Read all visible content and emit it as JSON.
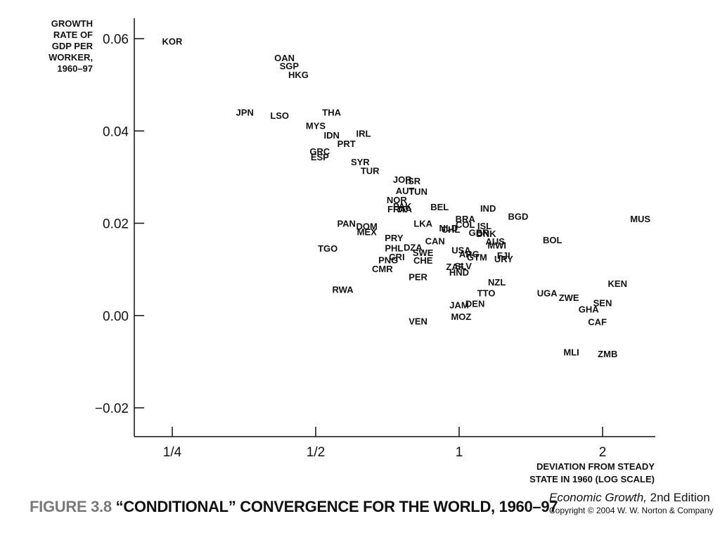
{
  "chart_data": {
    "type": "scatter",
    "title": "“CONDITIONAL” CONVERGENCE FOR THE WORLD, 1960–97",
    "ylabel": [
      "GROWTH",
      "RATE OF",
      "GDP PER",
      "WORKER,",
      "1960–97"
    ],
    "xlabel": [
      "DEVIATION FROM STEADY",
      "STATE IN 1960 (LOG SCALE)"
    ],
    "x_scale": "log2",
    "xlim": [
      0.2,
      2.6
    ],
    "ylim": [
      -0.026,
      0.064
    ],
    "x_ticks": [
      {
        "value": 0.25,
        "label": "1/4"
      },
      {
        "value": 0.5,
        "label": "1/2"
      },
      {
        "value": 1,
        "label": "1"
      },
      {
        "value": 2,
        "label": "2"
      }
    ],
    "y_ticks": [
      {
        "value": 0.06,
        "label": "0.06"
      },
      {
        "value": 0.04,
        "label": "0.04"
      },
      {
        "value": 0.02,
        "label": "0.02"
      },
      {
        "value": 0.0,
        "label": "0.00"
      },
      {
        "value": -0.02,
        "label": "−0.02"
      }
    ],
    "grid": false,
    "points": [
      {
        "label": "KOR",
        "x": 0.25,
        "y": 0.0595
      },
      {
        "label": "OAN",
        "x": 0.43,
        "y": 0.0559
      },
      {
        "label": "SGP",
        "x": 0.44,
        "y": 0.0541
      },
      {
        "label": "HKG",
        "x": 0.46,
        "y": 0.0522
      },
      {
        "label": "JPN",
        "x": 0.355,
        "y": 0.0441
      },
      {
        "label": "LSO",
        "x": 0.42,
        "y": 0.0434
      },
      {
        "label": "THA",
        "x": 0.54,
        "y": 0.0441
      },
      {
        "label": "MYS",
        "x": 0.5,
        "y": 0.0412
      },
      {
        "label": "IDN",
        "x": 0.54,
        "y": 0.0391
      },
      {
        "label": "IRL",
        "x": 0.63,
        "y": 0.0395
      },
      {
        "label": "PRT",
        "x": 0.58,
        "y": 0.0373
      },
      {
        "label": "GRC",
        "x": 0.51,
        "y": 0.0356
      },
      {
        "label": "ESP",
        "x": 0.51,
        "y": 0.0344
      },
      {
        "label": "SYR",
        "x": 0.62,
        "y": 0.0333
      },
      {
        "label": "TUR",
        "x": 0.65,
        "y": 0.0314
      },
      {
        "label": "JOR",
        "x": 0.76,
        "y": 0.0295
      },
      {
        "label": "ISR",
        "x": 0.8,
        "y": 0.0292
      },
      {
        "label": "AUT",
        "x": 0.77,
        "y": 0.0271
      },
      {
        "label": "TUN",
        "x": 0.82,
        "y": 0.0269
      },
      {
        "label": "NOR",
        "x": 0.74,
        "y": 0.0251
      },
      {
        "label": "PAK",
        "x": 0.76,
        "y": 0.0237
      },
      {
        "label": "FRA",
        "x": 0.74,
        "y": 0.0231
      },
      {
        "label": "ITA",
        "x": 0.77,
        "y": 0.0231
      },
      {
        "label": "BEL",
        "x": 0.91,
        "y": 0.0236
      },
      {
        "label": "IND",
        "x": 1.15,
        "y": 0.0233
      },
      {
        "label": "BGD",
        "x": 1.33,
        "y": 0.0215
      },
      {
        "label": "BRA",
        "x": 1.03,
        "y": 0.021
      },
      {
        "label": "COL",
        "x": 1.03,
        "y": 0.0198
      },
      {
        "label": "ISL",
        "x": 1.13,
        "y": 0.0195
      },
      {
        "label": "LKA",
        "x": 0.84,
        "y": 0.02
      },
      {
        "label": "NLD",
        "x": 0.95,
        "y": 0.019
      },
      {
        "label": "CHL",
        "x": 0.96,
        "y": 0.0187
      },
      {
        "label": "GBR",
        "x": 1.1,
        "y": 0.018
      },
      {
        "label": "DNK",
        "x": 1.14,
        "y": 0.0178
      },
      {
        "label": "MUS",
        "x": 2.4,
        "y": 0.021
      },
      {
        "label": "PAN",
        "x": 0.58,
        "y": 0.02
      },
      {
        "label": "DOM",
        "x": 0.64,
        "y": 0.0194
      },
      {
        "label": "MEX",
        "x": 0.64,
        "y": 0.0182
      },
      {
        "label": "PRY",
        "x": 0.73,
        "y": 0.0169
      },
      {
        "label": "CAN",
        "x": 0.89,
        "y": 0.0162
      },
      {
        "label": "AUS",
        "x": 1.19,
        "y": 0.0161
      },
      {
        "label": "MWI",
        "x": 1.2,
        "y": 0.0153
      },
      {
        "label": "BOL",
        "x": 1.57,
        "y": 0.0164
      },
      {
        "label": "TGO",
        "x": 0.53,
        "y": 0.0146
      },
      {
        "label": "PHL",
        "x": 0.73,
        "y": 0.0147
      },
      {
        "label": "DZA",
        "x": 0.8,
        "y": 0.0148
      },
      {
        "label": "USA",
        "x": 1.01,
        "y": 0.0142
      },
      {
        "label": "SWE",
        "x": 0.84,
        "y": 0.0137
      },
      {
        "label": "ARG",
        "x": 1.05,
        "y": 0.0134
      },
      {
        "label": "GTM",
        "x": 1.09,
        "y": 0.0127
      },
      {
        "label": "FJI",
        "x": 1.24,
        "y": 0.0131
      },
      {
        "label": "URY",
        "x": 1.24,
        "y": 0.0123
      },
      {
        "label": "CRI",
        "x": 0.74,
        "y": 0.0128
      },
      {
        "label": "PNG",
        "x": 0.71,
        "y": 0.0121
      },
      {
        "label": "CHE",
        "x": 0.84,
        "y": 0.012
      },
      {
        "label": "CMR",
        "x": 0.69,
        "y": 0.0102
      },
      {
        "label": "ZAF",
        "x": 0.98,
        "y": 0.0106
      },
      {
        "label": "SLV",
        "x": 1.02,
        "y": 0.0108
      },
      {
        "label": "HND",
        "x": 1.0,
        "y": 0.0094
      },
      {
        "label": "PER",
        "x": 0.82,
        "y": 0.0084
      },
      {
        "label": "NZL",
        "x": 1.2,
        "y": 0.0073
      },
      {
        "label": "KEN",
        "x": 2.15,
        "y": 0.007
      },
      {
        "label": "RWA",
        "x": 0.57,
        "y": 0.0057
      },
      {
        "label": "TTO",
        "x": 1.14,
        "y": 0.0049
      },
      {
        "label": "UGA",
        "x": 1.53,
        "y": 0.0049
      },
      {
        "label": "ZWE",
        "x": 1.7,
        "y": 0.0039
      },
      {
        "label": "SEN",
        "x": 2.0,
        "y": 0.0028
      },
      {
        "label": "JAM",
        "x": 1.0,
        "y": 0.0023
      },
      {
        "label": "DEN",
        "x": 1.08,
        "y": 0.0026
      },
      {
        "label": "GHA",
        "x": 1.87,
        "y": 0.0014
      },
      {
        "label": "MOZ",
        "x": 1.01,
        "y": -0.0002
      },
      {
        "label": "VEN",
        "x": 0.82,
        "y": -0.0012
      },
      {
        "label": "CAF",
        "x": 1.95,
        "y": -0.0013
      },
      {
        "label": "MLI",
        "x": 1.72,
        "y": -0.0079
      },
      {
        "label": "ZMB",
        "x": 2.05,
        "y": -0.0083
      }
    ]
  },
  "caption": {
    "figure_number": "FIGURE 3.8",
    "figure_title": "“CONDITIONAL” CONVERGENCE FOR THE WORLD, 1960–97"
  },
  "publisher": {
    "book_title": "Economic Growth,",
    "edition": "2nd Edition",
    "copyright": "Copyright © 2004 W. W. Norton & Company"
  }
}
